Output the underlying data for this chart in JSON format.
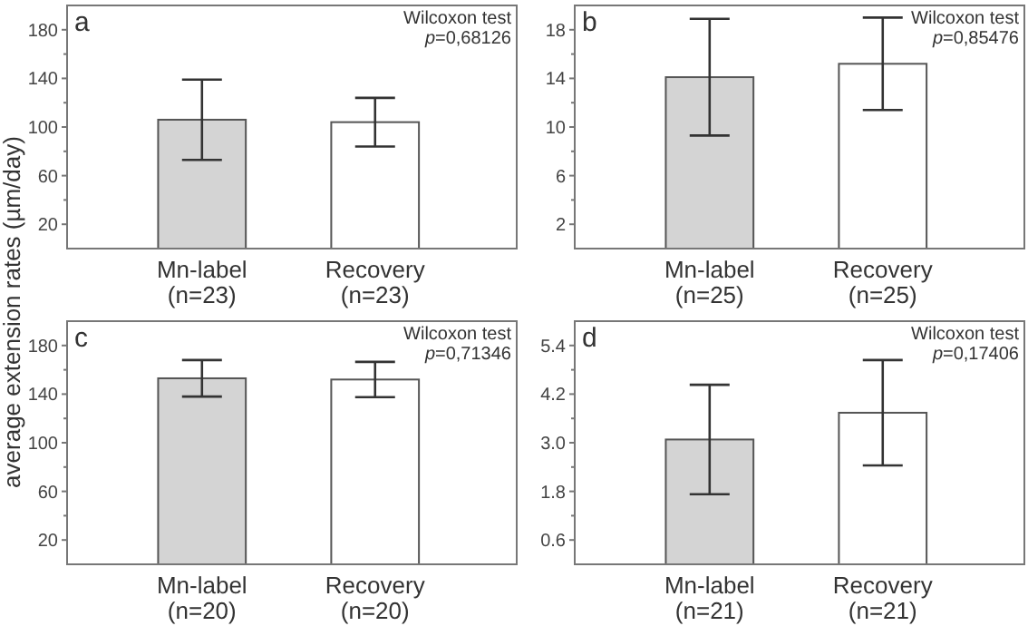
{
  "chart_data": [
    {
      "type": "bar",
      "title": "a",
      "ylabel": "average extension rates (µm/day)",
      "annotations": [
        "Wilcoxon test",
        "p=0,68126"
      ],
      "categories": [
        "Mn-label\n(n=23)",
        "Recovery\n(n=23)"
      ],
      "values": [
        106,
        104
      ],
      "errors": [
        33,
        20
      ],
      "colors": [
        "#d4d4d4",
        "#ffffff"
      ],
      "ylim": [
        0,
        200
      ],
      "yticks": [
        20,
        {
          "value": 40,
          "label": null
        },
        60,
        {
          "value": 80,
          "label": null
        },
        100,
        {
          "value": 120,
          "label": null
        },
        140,
        {
          "value": 160,
          "label": null
        },
        180
      ],
      "grid": false
    },
    {
      "type": "bar",
      "title": "b",
      "annotations": [
        "Wilcoxon test",
        "p=0,85476"
      ],
      "categories": [
        "Mn-label\n(n=25)",
        "Recovery\n(n=25)"
      ],
      "values": [
        14.1,
        15.2
      ],
      "errors": [
        4.8,
        3.8
      ],
      "colors": [
        "#d4d4d4",
        "#ffffff"
      ],
      "ylim": [
        0,
        20
      ],
      "yticks": [
        2,
        {
          "value": 4,
          "label": null
        },
        6,
        {
          "value": 8,
          "label": null
        },
        10,
        {
          "value": 12,
          "label": null
        },
        14,
        {
          "value": 16,
          "label": null
        },
        18
      ],
      "grid": false
    },
    {
      "type": "bar",
      "title": "c",
      "annotations": [
        "Wilcoxon test",
        "p=0,71346"
      ],
      "categories": [
        "Mn-label\n(n=20)",
        "Recovery\n(n=20)"
      ],
      "values": [
        153,
        152
      ],
      "errors": [
        15,
        14.5
      ],
      "colors": [
        "#d4d4d4",
        "#ffffff"
      ],
      "ylim": [
        0,
        200
      ],
      "yticks": [
        20,
        {
          "value": 40,
          "label": null
        },
        60,
        {
          "value": 80,
          "label": null
        },
        100,
        {
          "value": 120,
          "label": null
        },
        140,
        {
          "value": 160,
          "label": null
        },
        180
      ],
      "grid": false
    },
    {
      "type": "bar",
      "title": "d",
      "annotations": [
        "Wilcoxon test",
        "p=0,17406"
      ],
      "categories": [
        "Mn-label\n(n=21)",
        "Recovery\n(n=21)"
      ],
      "values": [
        3.08,
        3.74
      ],
      "errors": [
        1.35,
        1.3
      ],
      "colors": [
        "#d4d4d4",
        "#ffffff"
      ],
      "ylim": [
        0,
        6
      ],
      "yticks": [
        0.6,
        {
          "value": 1.2,
          "label": null
        },
        1.8,
        {
          "value": 2.4,
          "label": null
        },
        {
          "value": 3,
          "label": "3.0"
        },
        {
          "value": 3.6,
          "label": null
        },
        4.2,
        {
          "value": 4.8,
          "label": null
        },
        5.4
      ],
      "grid": false
    }
  ]
}
